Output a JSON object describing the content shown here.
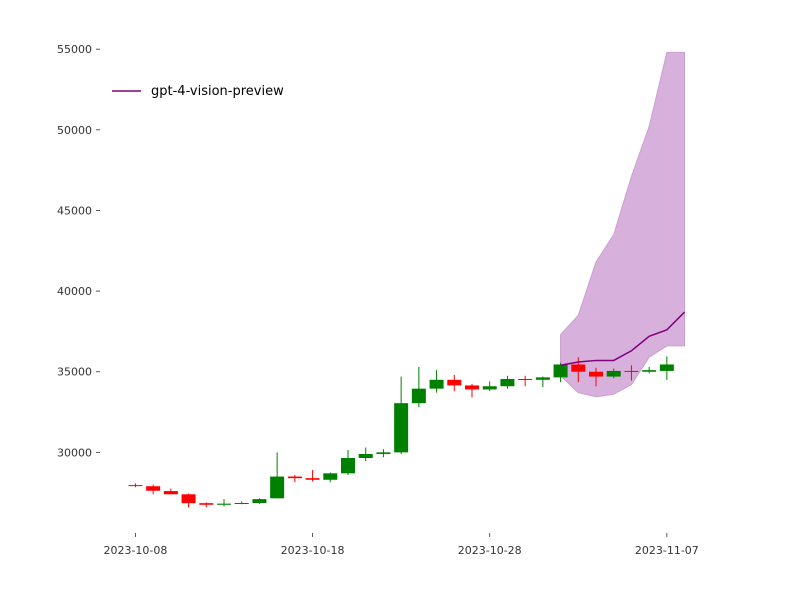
{
  "chart_data": {
    "type": "candlestick",
    "title": "",
    "xlabel": "",
    "ylabel": "",
    "ylim": [
      25000,
      56500
    ],
    "xlim": [
      "2023-10-06",
      "2023-11-10"
    ],
    "grid": false,
    "legend_placement": "top-left",
    "y_ticks": [
      30000,
      35000,
      40000,
      45000,
      50000,
      55000
    ],
    "y_tick_labels": [
      "30000",
      "35000",
      "40000",
      "45000",
      "50000",
      "55000"
    ],
    "x_ticks": [
      "2023-10-08",
      "2023-10-18",
      "2023-10-28",
      "2023-11-07"
    ],
    "x_tick_labels": [
      "2023-10-08",
      "2023-10-18",
      "2023-10-28",
      "2023-11-07"
    ],
    "colors": {
      "up": "#008000",
      "down": "#ff0000",
      "forecast_line": "#800080",
      "forecast_band": "#d8b0dc"
    },
    "candles": [
      {
        "date": "2023-10-08",
        "open": 27970,
        "high": 28080,
        "low": 27840,
        "close": 27940
      },
      {
        "date": "2023-10-09",
        "open": 27900,
        "high": 28000,
        "low": 27400,
        "close": 27620
      },
      {
        "date": "2023-10-10",
        "open": 27600,
        "high": 27750,
        "low": 27400,
        "close": 27400
      },
      {
        "date": "2023-10-11",
        "open": 27400,
        "high": 27450,
        "low": 26600,
        "close": 26850
      },
      {
        "date": "2023-10-12",
        "open": 26850,
        "high": 26900,
        "low": 26600,
        "close": 26750
      },
      {
        "date": "2023-10-13",
        "open": 26750,
        "high": 27100,
        "low": 26650,
        "close": 26820
      },
      {
        "date": "2023-10-14",
        "open": 26850,
        "high": 26950,
        "low": 26780,
        "close": 26860
      },
      {
        "date": "2023-10-15",
        "open": 26860,
        "high": 27150,
        "low": 26800,
        "close": 27100
      },
      {
        "date": "2023-10-16",
        "open": 27150,
        "high": 30000,
        "low": 27150,
        "close": 28500
      },
      {
        "date": "2023-10-17",
        "open": 28500,
        "high": 28600,
        "low": 28150,
        "close": 28400
      },
      {
        "date": "2023-10-18",
        "open": 28400,
        "high": 28900,
        "low": 28200,
        "close": 28300
      },
      {
        "date": "2023-10-19",
        "open": 28300,
        "high": 28750,
        "low": 28150,
        "close": 28700
      },
      {
        "date": "2023-10-20",
        "open": 28700,
        "high": 30150,
        "low": 28600,
        "close": 29650
      },
      {
        "date": "2023-10-21",
        "open": 29650,
        "high": 30300,
        "low": 29450,
        "close": 29900
      },
      {
        "date": "2023-10-22",
        "open": 29900,
        "high": 30200,
        "low": 29700,
        "close": 30000
      },
      {
        "date": "2023-10-23",
        "open": 30000,
        "high": 34700,
        "low": 29900,
        "close": 33050
      },
      {
        "date": "2023-10-24",
        "open": 33050,
        "high": 35300,
        "low": 32800,
        "close": 33950
      },
      {
        "date": "2023-10-25",
        "open": 33950,
        "high": 35100,
        "low": 33700,
        "close": 34500
      },
      {
        "date": "2023-10-26",
        "open": 34500,
        "high": 34800,
        "low": 33800,
        "close": 34150
      },
      {
        "date": "2023-10-27",
        "open": 34150,
        "high": 34250,
        "low": 33400,
        "close": 33900
      },
      {
        "date": "2023-10-28",
        "open": 33900,
        "high": 34400,
        "low": 33800,
        "close": 34100
      },
      {
        "date": "2023-10-29",
        "open": 34100,
        "high": 34750,
        "low": 33950,
        "close": 34550
      },
      {
        "date": "2023-10-30",
        "open": 34550,
        "high": 34750,
        "low": 34100,
        "close": 34500
      },
      {
        "date": "2023-10-31",
        "open": 34500,
        "high": 34700,
        "low": 34050,
        "close": 34650
      },
      {
        "date": "2023-11-01",
        "open": 34650,
        "high": 35550,
        "low": 34350,
        "close": 35450
      },
      {
        "date": "2023-11-02",
        "open": 35450,
        "high": 35900,
        "low": 34350,
        "close": 35000
      },
      {
        "date": "2023-11-03",
        "open": 35000,
        "high": 35250,
        "low": 34100,
        "close": 34700
      },
      {
        "date": "2023-11-04",
        "open": 34700,
        "high": 35200,
        "low": 34600,
        "close": 35050
      },
      {
        "date": "2023-11-05",
        "open": 35050,
        "high": 35400,
        "low": 34450,
        "close": 35000
      },
      {
        "date": "2023-11-06",
        "open": 35000,
        "high": 35300,
        "low": 34900,
        "close": 35100
      },
      {
        "date": "2023-11-07",
        "open": 35050,
        "high": 35950,
        "low": 34500,
        "close": 35450
      }
    ],
    "forecast": {
      "name": "gpt-4-vision-preview",
      "dates": [
        "2023-11-01",
        "2023-11-02",
        "2023-11-03",
        "2023-11-04",
        "2023-11-05",
        "2023-11-06",
        "2023-11-07",
        "2023-11-08"
      ],
      "median": [
        35400,
        35600,
        35700,
        35700,
        36300,
        37200,
        37600,
        38700
      ],
      "upper": [
        37300,
        38500,
        41800,
        43500,
        47100,
        50200,
        54800,
        54800
      ],
      "lower": [
        34750,
        33700,
        33450,
        33600,
        34200,
        35900,
        36600,
        36600
      ]
    }
  }
}
